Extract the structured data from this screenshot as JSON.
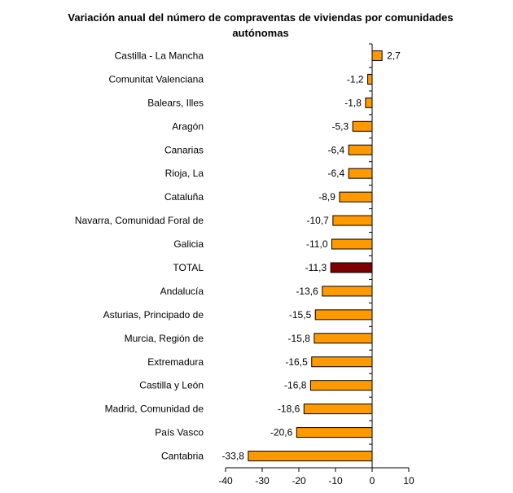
{
  "chart_data": {
    "type": "bar",
    "orientation": "horizontal",
    "title": "Variación anual del número de compraventas de viviendas por comunidades autónomas",
    "categories": [
      "Castilla - La Mancha",
      "Comunitat Valenciana",
      "Balears, Illes",
      "Aragón",
      "Canarias",
      "Rioja, La",
      "Cataluña",
      "Navarra, Comunidad Foral de",
      "Galicia",
      "TOTAL",
      "Andalucía",
      "Asturias, Principado de",
      "Murcia, Región de",
      "Extremadura",
      "Castilla y León",
      "Madrid, Comunidad de",
      "País Vasco",
      "Cantabria"
    ],
    "values": [
      2.7,
      -1.2,
      -1.8,
      -5.3,
      -6.4,
      -6.4,
      -8.9,
      -10.7,
      -11.0,
      -11.3,
      -13.6,
      -15.5,
      -15.8,
      -16.5,
      -16.8,
      -18.6,
      -20.6,
      -33.8
    ],
    "data_labels": [
      "2,7",
      "-1,2",
      "-1,8",
      "-5,3",
      "-6,4",
      "-6,4",
      "-8,9",
      "-10,7",
      "-11,0",
      "-11,3",
      "-13,6",
      "-15,5",
      "-15,8",
      "-16,5",
      "-16,8",
      "-18,6",
      "-20,6",
      "-33,8"
    ],
    "xlim": [
      -40,
      10
    ],
    "xticks": [
      "-40",
      "-30",
      "-20",
      "-10",
      "0",
      "10"
    ],
    "grid": false,
    "colors": {
      "bar": "#FF9900",
      "highlight": "#800000",
      "highlight_category": "TOTAL"
    }
  }
}
